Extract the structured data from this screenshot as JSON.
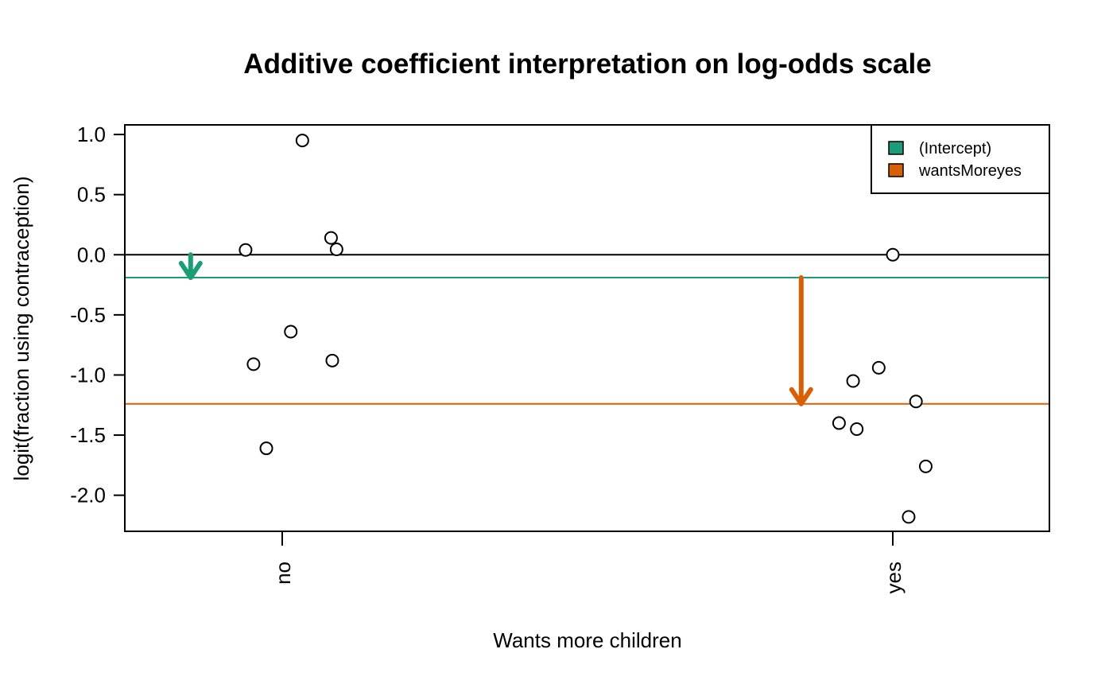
{
  "chart_data": {
    "type": "scatter",
    "title": "Additive coefficient interpretation on log-odds scale",
    "xlabel": "Wants more children",
    "ylabel": "logit(fraction using contraception)",
    "categories": [
      "no",
      "yes"
    ],
    "ylim": [
      -2.3,
      1.08
    ],
    "yticks": [
      1.0,
      0.5,
      0.0,
      -0.5,
      -1.0,
      -1.5,
      -2.0
    ],
    "ytick_labels": [
      "1.0",
      "0.5",
      "0.0",
      "-0.5",
      "-1.0",
      "-1.5",
      "-2.0"
    ],
    "grid": false,
    "points": [
      {
        "group": "no",
        "jitter": 0.033,
        "y": 0.95
      },
      {
        "group": "no",
        "jitter": -0.06,
        "y": 0.04
      },
      {
        "group": "no",
        "jitter": 0.08,
        "y": 0.14
      },
      {
        "group": "no",
        "jitter": 0.089,
        "y": 0.045
      },
      {
        "group": "no",
        "jitter": 0.014,
        "y": -0.64
      },
      {
        "group": "no",
        "jitter": -0.047,
        "y": -0.91
      },
      {
        "group": "no",
        "jitter": 0.082,
        "y": -0.88
      },
      {
        "group": "no",
        "jitter": -0.026,
        "y": -1.61
      },
      {
        "group": "yes",
        "jitter": 0.0,
        "y": 0.0
      },
      {
        "group": "yes",
        "jitter": -0.023,
        "y": -0.94
      },
      {
        "group": "yes",
        "jitter": -0.065,
        "y": -1.05
      },
      {
        "group": "yes",
        "jitter": 0.038,
        "y": -1.22
      },
      {
        "group": "yes",
        "jitter": -0.088,
        "y": -1.4
      },
      {
        "group": "yes",
        "jitter": -0.059,
        "y": -1.45
      },
      {
        "group": "yes",
        "jitter": 0.054,
        "y": -1.76
      },
      {
        "group": "yes",
        "jitter": 0.026,
        "y": -2.18
      }
    ],
    "reference_line": {
      "y": 0.0,
      "color": "#000000"
    },
    "coefficients": [
      {
        "name": "(Intercept)",
        "value": -0.19,
        "from": 0.0,
        "to": -0.19,
        "arrow_x": -0.15,
        "color": "#1b9e77"
      },
      {
        "name": "wantsMoreyes",
        "value": -1.05,
        "from": -0.19,
        "to": -1.24,
        "arrow_x": 0.85,
        "color": "#d95f02"
      }
    ],
    "legend": {
      "position": "top-right",
      "entries": [
        {
          "label": "(Intercept)",
          "color": "#1b9e77"
        },
        {
          "label": "wantsMoreyes",
          "color": "#d95f02"
        }
      ]
    }
  }
}
